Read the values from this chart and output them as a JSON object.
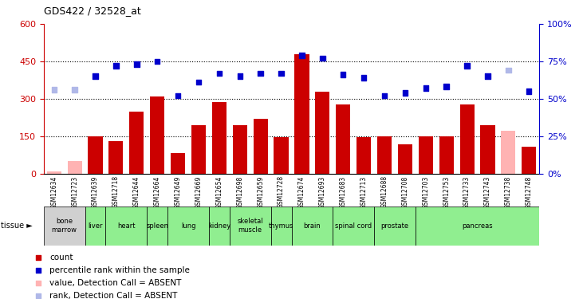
{
  "title": "GDS422 / 32528_at",
  "samples": [
    "GSM12634",
    "GSM12723",
    "GSM12639",
    "GSM12718",
    "GSM12644",
    "GSM12664",
    "GSM12649",
    "GSM12669",
    "GSM12654",
    "GSM12698",
    "GSM12659",
    "GSM12728",
    "GSM12674",
    "GSM12693",
    "GSM12683",
    "GSM12713",
    "GSM12688",
    "GSM12708",
    "GSM12703",
    "GSM12753",
    "GSM12733",
    "GSM12743",
    "GSM12738",
    "GSM12748"
  ],
  "count_values": [
    8,
    50,
    150,
    130,
    248,
    310,
    82,
    195,
    285,
    195,
    218,
    145,
    478,
    328,
    278,
    145,
    150,
    118,
    150,
    148,
    278,
    195,
    172,
    108
  ],
  "count_absent": [
    true,
    true,
    false,
    false,
    false,
    false,
    false,
    false,
    false,
    false,
    false,
    false,
    false,
    false,
    false,
    false,
    false,
    false,
    false,
    false,
    false,
    false,
    true,
    false
  ],
  "rank_pct": [
    56,
    56,
    65,
    72,
    73,
    75,
    52,
    61,
    67,
    65,
    67,
    67,
    79,
    77,
    66,
    64,
    52,
    54,
    57,
    58,
    72,
    65,
    69,
    55
  ],
  "rank_absent": [
    true,
    true,
    false,
    false,
    false,
    false,
    false,
    false,
    false,
    false,
    false,
    false,
    false,
    false,
    false,
    false,
    false,
    false,
    false,
    false,
    false,
    false,
    true,
    false
  ],
  "tissue_groups": [
    {
      "label": "bone\nmarrow",
      "start": 0,
      "end": 2,
      "color": "#d0d0d0"
    },
    {
      "label": "liver",
      "start": 2,
      "end": 3,
      "color": "#90EE90"
    },
    {
      "label": "heart",
      "start": 3,
      "end": 5,
      "color": "#90EE90"
    },
    {
      "label": "spleen",
      "start": 5,
      "end": 6,
      "color": "#90EE90"
    },
    {
      "label": "lung",
      "start": 6,
      "end": 8,
      "color": "#90EE90"
    },
    {
      "label": "kidney",
      "start": 8,
      "end": 9,
      "color": "#90EE90"
    },
    {
      "label": "skeletal\nmuscle",
      "start": 9,
      "end": 11,
      "color": "#90EE90"
    },
    {
      "label": "thymus",
      "start": 11,
      "end": 12,
      "color": "#90EE90"
    },
    {
      "label": "brain",
      "start": 12,
      "end": 14,
      "color": "#90EE90"
    },
    {
      "label": "spinal cord",
      "start": 14,
      "end": 16,
      "color": "#90EE90"
    },
    {
      "label": "prostate",
      "start": 16,
      "end": 18,
      "color": "#90EE90"
    },
    {
      "label": "pancreas",
      "start": 18,
      "end": 24,
      "color": "#90EE90"
    }
  ],
  "ylim_left": [
    0,
    600
  ],
  "ylim_right": [
    0,
    100
  ],
  "yticks_left": [
    0,
    150,
    300,
    450,
    600
  ],
  "yticks_right": [
    0,
    25,
    50,
    75,
    100
  ],
  "count_color": "#cc0000",
  "count_absent_color": "#ffb3b3",
  "rank_color": "#0000cc",
  "rank_absent_color": "#b0b8e8",
  "hline_values": [
    150,
    300,
    450
  ],
  "bg_xtick": "#d8d8d8"
}
